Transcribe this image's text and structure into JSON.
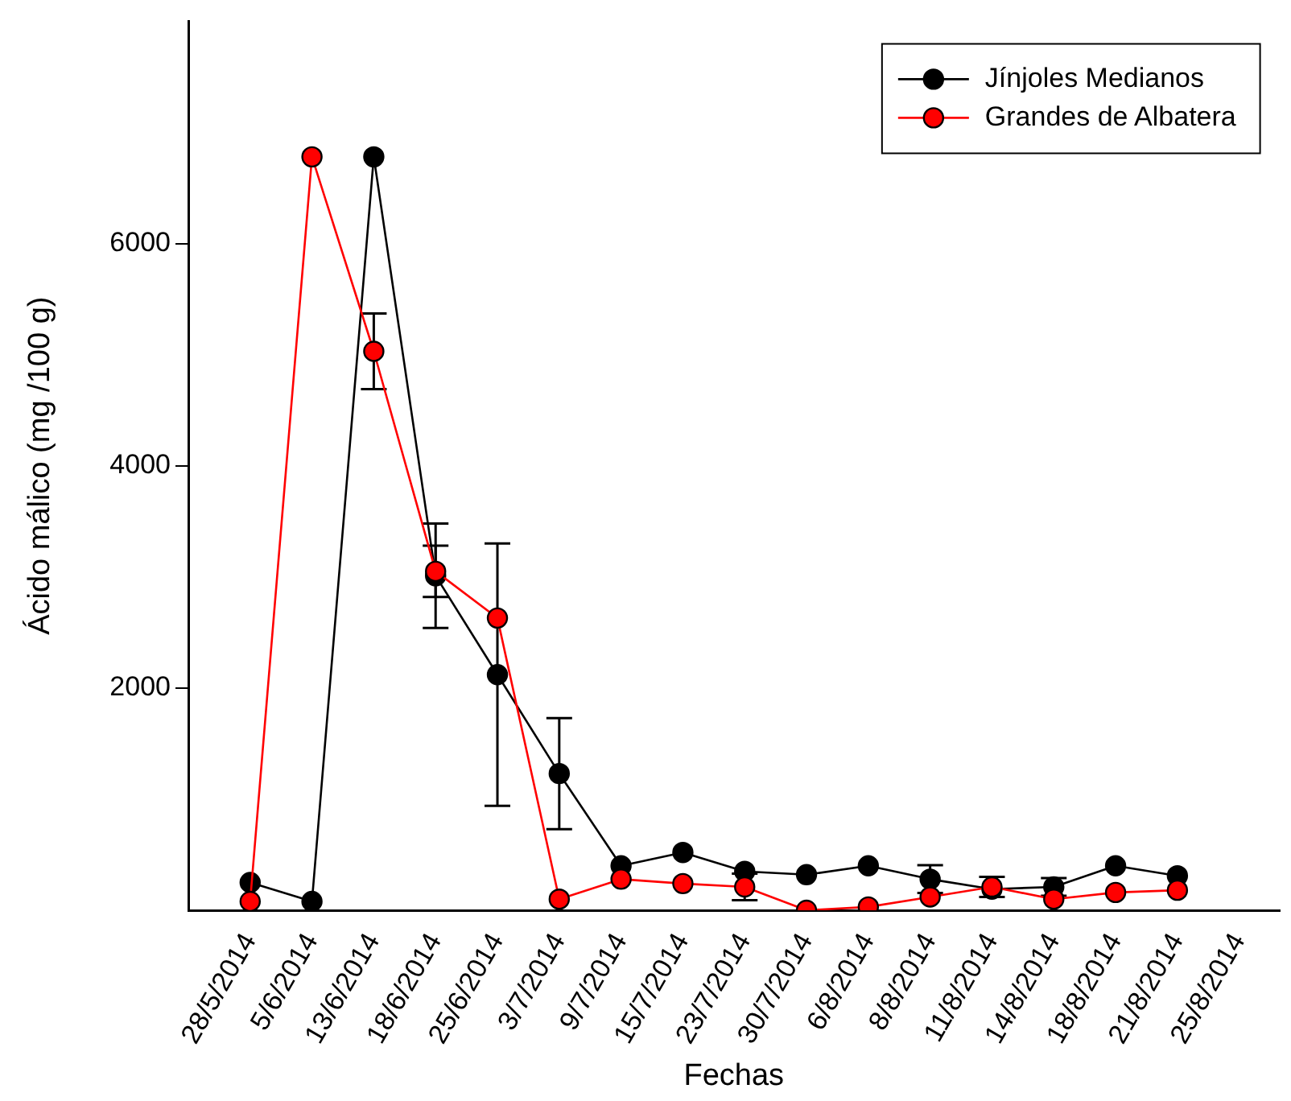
{
  "chart_data": {
    "type": "line",
    "xlabel": "Fechas",
    "ylabel": "Ácido málico (mg /100 g)",
    "categories": [
      "28/5/2014",
      "5/6/2014",
      "13/6/2014",
      "18/6/2014",
      "25/6/2014",
      "3/7/2014",
      "9/7/2014",
      "15/7/2014",
      "23/7/2014",
      "30/7/2014",
      "6/8/2014",
      "8/8/2014",
      "11/8/2014",
      "14/8/2014",
      "18/8/2014",
      "21/8/2014",
      "25/8/2014"
    ],
    "series": [
      {
        "name": "Jínjoles Medianos",
        "color": "#000000",
        "values": [
          250,
          80,
          6780,
          3010,
          2120,
          1230,
          400,
          520,
          350,
          320,
          400,
          280,
          190,
          210,
          400,
          310,
          null
        ],
        "errors": [
          null,
          null,
          null,
          470,
          1180,
          500,
          null,
          null,
          null,
          null,
          null,
          125,
          null,
          80,
          null,
          null,
          null
        ]
      },
      {
        "name": "Grandes de Albatera",
        "color": "#ff0000",
        "values": [
          80,
          6780,
          5030,
          3050,
          2630,
          100,
          280,
          240,
          210,
          0,
          30,
          120,
          210,
          100,
          160,
          180,
          null
        ],
        "errors": [
          null,
          null,
          340,
          230,
          null,
          null,
          null,
          null,
          120,
          null,
          null,
          null,
          90,
          null,
          null,
          null,
          null
        ]
      }
    ],
    "ylim": [
      0,
      8000
    ],
    "yticks": [
      2000,
      4000,
      6000
    ],
    "grid": false,
    "legend": "top right",
    "marker": "circle",
    "line_style": "solid"
  }
}
